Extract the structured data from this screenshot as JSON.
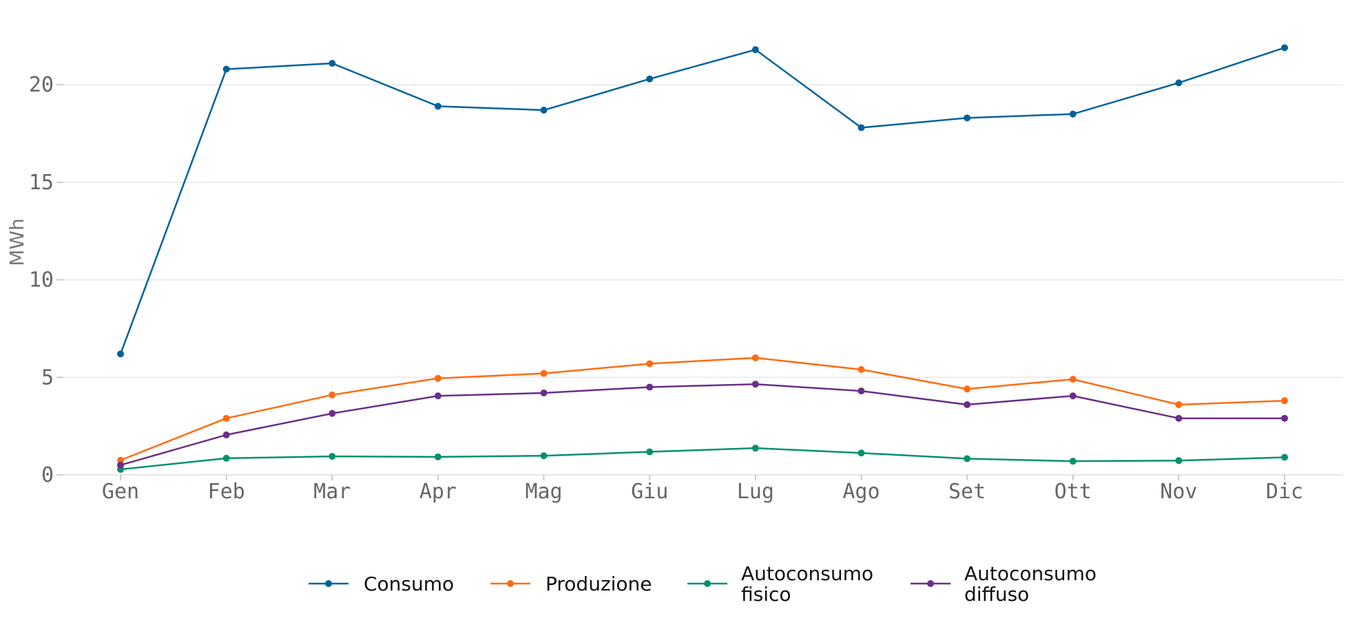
{
  "chart_data": {
    "type": "line",
    "title": "",
    "xlabel": "",
    "ylabel": "MWh",
    "categories": [
      "Gen",
      "Feb",
      "Mar",
      "Apr",
      "Mag",
      "Giu",
      "Lug",
      "Ago",
      "Set",
      "Ott",
      "Nov",
      "Dic"
    ],
    "yticks": [
      0,
      5,
      10,
      15,
      20
    ],
    "ylim": [
      0,
      23.5
    ],
    "grid": "horizontal",
    "legend_position": "bottom",
    "series": [
      {
        "name": "Consumo",
        "legend_lines": [
          "Consumo"
        ],
        "color": "#00629B",
        "values": [
          6.2,
          20.8,
          21.1,
          18.9,
          18.7,
          20.3,
          21.8,
          17.8,
          18.3,
          18.5,
          20.1,
          21.9
        ]
      },
      {
        "name": "Produzione",
        "legend_lines": [
          "Produzione"
        ],
        "color": "#FF6B10",
        "values": [
          0.75,
          2.9,
          4.1,
          4.95,
          5.2,
          5.7,
          6.0,
          5.4,
          4.4,
          4.9,
          3.6,
          3.8
        ]
      },
      {
        "name": "Autoconsumo fisico",
        "legend_lines": [
          "Autoconsumo",
          "fisico"
        ],
        "color": "#00916E",
        "values": [
          0.28,
          0.85,
          0.95,
          0.92,
          0.98,
          1.18,
          1.37,
          1.12,
          0.83,
          0.7,
          0.73,
          0.9
        ]
      },
      {
        "name": "Autoconsumo diffuso",
        "legend_lines": [
          "Autoconsumo",
          "diffuso"
        ],
        "color": "#6B2D87",
        "values": [
          0.5,
          2.05,
          3.15,
          4.05,
          4.2,
          4.5,
          4.65,
          4.3,
          3.6,
          4.05,
          2.9,
          2.9
        ]
      }
    ]
  }
}
